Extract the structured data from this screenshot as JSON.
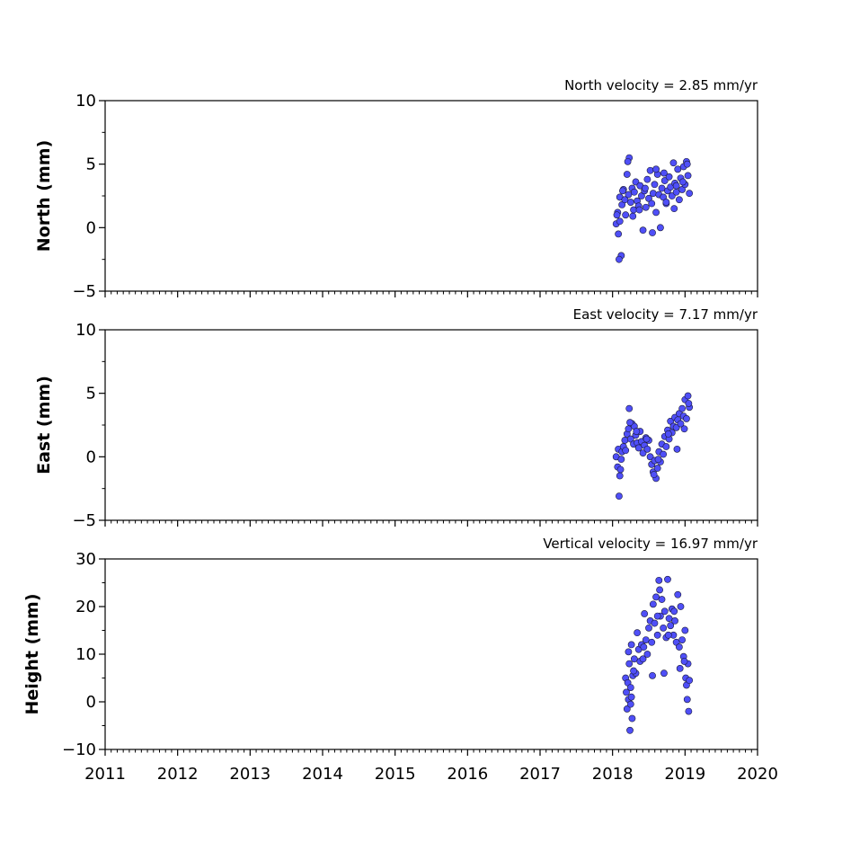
{
  "chart_data": [
    {
      "type": "scatter",
      "title": "North velocity = 2.85 mm/yr",
      "ylabel": "North (mm)",
      "xlim": [
        2011,
        2020
      ],
      "ylim": [
        -5,
        10
      ],
      "yticks": [
        -5,
        0,
        5,
        10
      ],
      "ytick_labels": [
        "−5",
        "0",
        "5",
        "10"
      ],
      "xtick_labels_shown": false,
      "marker_color": "#4f4ff7",
      "series": [
        {
          "x": [
            2018.05,
            2018.07,
            2018.08,
            2018.1,
            2018.12,
            2018.13,
            2018.15,
            2018.17,
            2018.18,
            2018.2,
            2018.22,
            2018.23,
            2018.25,
            2018.27,
            2018.29,
            2018.3,
            2018.32,
            2018.34,
            2018.36,
            2018.38,
            2018.4,
            2018.42,
            2018.44,
            2018.46,
            2018.48,
            2018.5,
            2018.52,
            2018.54,
            2018.56,
            2018.58,
            2018.6,
            2018.62,
            2018.64,
            2018.66,
            2018.68,
            2018.7,
            2018.72,
            2018.74,
            2018.76,
            2018.78,
            2018.8,
            2018.82,
            2018.84,
            2018.86,
            2018.88,
            2018.9,
            2018.92,
            2018.94,
            2018.96,
            2018.98,
            2019.0,
            2019.02,
            2019.04,
            2019.06,
            2018.09,
            2018.1,
            2018.21,
            2018.37,
            2018.6,
            2018.74,
            2018.88,
            2019.03,
            2018.06,
            2018.14,
            2018.28,
            2018.45,
            2018.55,
            2018.71,
            2018.85,
            2018.97
          ],
          "y": [
            0.3,
            1.2,
            -0.5,
            2.4,
            -2.2,
            1.8,
            3.0,
            2.2,
            1.0,
            4.2,
            2.6,
            5.5,
            2.0,
            3.1,
            1.4,
            2.8,
            3.6,
            2.1,
            1.7,
            3.3,
            2.5,
            -0.2,
            2.9,
            1.6,
            3.8,
            2.3,
            4.5,
            1.9,
            2.7,
            3.4,
            1.2,
            4.2,
            2.6,
            0.0,
            3.1,
            2.4,
            3.7,
            1.9,
            2.9,
            4.0,
            3.2,
            2.5,
            5.1,
            3.5,
            2.8,
            4.6,
            2.2,
            3.9,
            3.0,
            4.8,
            3.4,
            5.2,
            4.1,
            2.7,
            -2.5,
            0.5,
            5.2,
            1.4,
            4.6,
            2.0,
            3.3,
            5.0,
            1.0,
            2.9,
            0.9,
            3.1,
            -0.4,
            4.3,
            1.5,
            3.6
          ]
        }
      ]
    },
    {
      "type": "scatter",
      "title": "East velocity = 7.17 mm/yr",
      "ylabel": "East (mm)",
      "xlim": [
        2011,
        2020
      ],
      "ylim": [
        -5,
        10
      ],
      "yticks": [
        -5,
        0,
        5,
        10
      ],
      "ytick_labels": [
        "−5",
        "0",
        "5",
        "10"
      ],
      "xtick_labels_shown": false,
      "marker_color": "#4f4ff7",
      "series": [
        {
          "x": [
            2018.05,
            2018.07,
            2018.08,
            2018.1,
            2018.12,
            2018.13,
            2018.15,
            2018.17,
            2018.18,
            2018.2,
            2018.22,
            2018.23,
            2018.25,
            2018.27,
            2018.29,
            2018.3,
            2018.32,
            2018.34,
            2018.36,
            2018.38,
            2018.4,
            2018.42,
            2018.44,
            2018.46,
            2018.48,
            2018.5,
            2018.52,
            2018.54,
            2018.56,
            2018.58,
            2018.6,
            2018.62,
            2018.64,
            2018.66,
            2018.68,
            2018.7,
            2018.72,
            2018.74,
            2018.76,
            2018.78,
            2018.8,
            2018.82,
            2018.84,
            2018.86,
            2018.88,
            2018.9,
            2018.92,
            2018.94,
            2018.96,
            2018.98,
            2019.0,
            2019.02,
            2019.04,
            2019.06,
            2018.09,
            2018.11,
            2018.24,
            2018.33,
            2018.47,
            2018.57,
            2018.63,
            2018.77,
            2018.89,
            2018.99,
            2019.05
          ],
          "y": [
            0.0,
            -0.8,
            0.6,
            -1.5,
            -0.2,
            0.4,
            0.8,
            1.3,
            0.5,
            1.8,
            2.2,
            3.8,
            1.4,
            2.6,
            1.0,
            2.4,
            1.7,
            1.1,
            0.7,
            2.0,
            1.2,
            0.3,
            0.9,
            1.5,
            0.6,
            1.3,
            0.0,
            -0.6,
            -1.2,
            -0.3,
            -1.7,
            -0.9,
            0.4,
            -0.4,
            1.0,
            0.2,
            1.6,
            0.8,
            2.1,
            1.4,
            2.8,
            1.9,
            2.4,
            3.1,
            2.3,
            2.9,
            3.4,
            2.6,
            3.8,
            3.2,
            4.5,
            3.0,
            4.8,
            3.9,
            -3.1,
            -1.0,
            2.7,
            2.0,
            1.4,
            -1.4,
            -0.2,
            1.8,
            0.6,
            2.2,
            4.2
          ]
        }
      ]
    },
    {
      "type": "scatter",
      "title": "Vertical velocity = 16.97 mm/yr",
      "ylabel": "Height (mm)",
      "xlim": [
        2011,
        2020
      ],
      "ylim": [
        -10,
        30
      ],
      "yticks": [
        -10,
        0,
        10,
        20,
        30
      ],
      "ytick_labels": [
        "−10",
        "0",
        "10",
        "20",
        "30"
      ],
      "xticks": [
        2011,
        2012,
        2013,
        2014,
        2015,
        2016,
        2017,
        2018,
        2019,
        2020
      ],
      "xtick_labels": [
        "2011",
        "2012",
        "2013",
        "2014",
        "2015",
        "2016",
        "2017",
        "2018",
        "2019",
        "2020"
      ],
      "marker_color": "#4f4ff7",
      "series": [
        {
          "x": [
            2018.18,
            2018.19,
            2018.2,
            2018.21,
            2018.22,
            2018.23,
            2018.24,
            2018.25,
            2018.26,
            2018.27,
            2018.28,
            2018.3,
            2018.32,
            2018.34,
            2018.36,
            2018.38,
            2018.4,
            2018.42,
            2018.44,
            2018.46,
            2018.48,
            2018.5,
            2018.52,
            2018.54,
            2018.56,
            2018.58,
            2018.6,
            2018.62,
            2018.64,
            2018.66,
            2018.68,
            2018.7,
            2018.72,
            2018.74,
            2018.76,
            2018.78,
            2018.8,
            2018.82,
            2018.84,
            2018.86,
            2018.88,
            2018.9,
            2018.92,
            2018.94,
            2018.96,
            2018.98,
            2019.0,
            2019.01,
            2019.02,
            2019.03,
            2019.04,
            2019.05,
            2018.22,
            2018.25,
            2018.29,
            2018.43,
            2018.55,
            2018.65,
            2018.71,
            2018.77,
            2018.85,
            2018.93,
            2018.99,
            2019.06,
            2018.26,
            2018.62
          ],
          "y": [
            5.0,
            2.0,
            -1.5,
            4.0,
            0.5,
            8.0,
            -6.0,
            3.0,
            12.0,
            -3.5,
            5.5,
            9.0,
            6.0,
            14.5,
            11.0,
            8.5,
            12.0,
            9.0,
            18.5,
            13.0,
            10.0,
            15.5,
            17.0,
            12.5,
            20.5,
            16.5,
            22.0,
            14.0,
            25.5,
            18.0,
            21.5,
            15.5,
            19.0,
            13.5,
            25.7,
            17.5,
            16.0,
            19.5,
            14.0,
            17.0,
            12.5,
            22.5,
            11.5,
            20.0,
            13.0,
            9.5,
            15.0,
            5.0,
            3.5,
            0.5,
            8.0,
            -2.0,
            10.5,
            -0.5,
            6.5,
            11.5,
            5.5,
            23.5,
            6.0,
            14.0,
            19.0,
            7.0,
            8.5,
            4.5,
            1.0,
            18.0
          ]
        }
      ]
    }
  ]
}
